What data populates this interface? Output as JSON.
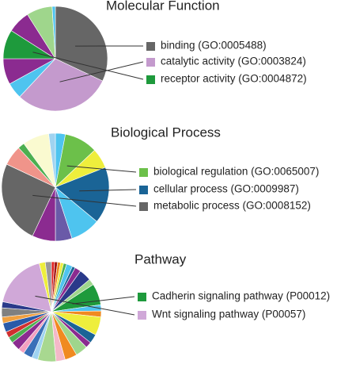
{
  "chart_data": [
    {
      "type": "pie",
      "title": "Molecular Function",
      "categories": [
        "binding (GO:0005488)",
        "catalytic activity (GO:0003824)",
        null,
        null,
        "receptor activity (GO:0004872)",
        null,
        null,
        null
      ],
      "values": [
        32,
        30,
        5,
        8,
        9,
        7,
        8,
        1
      ],
      "colors": [
        "#666666",
        "#c49acd",
        "#4ec4ef",
        "#8b2b90",
        "#1e9a3c",
        "#8b2b90",
        "#9fd68c",
        "#4ec4ef"
      ]
    },
    {
      "type": "pie",
      "title": "Biological Process",
      "categories": [
        null,
        "biological regulation (GO:0065007)",
        null,
        "cellular process (GO:0009987)",
        null,
        null,
        null,
        "metabolic process (GO:0008152)",
        null,
        null,
        null,
        null
      ],
      "values": [
        3,
        10,
        6,
        17,
        9,
        5,
        7,
        25,
        6,
        2,
        8,
        2
      ],
      "colors": [
        "#4ec4ef",
        "#6cc04a",
        "#eeee3c",
        "#1a6496",
        "#4ec4ef",
        "#6a5aa8",
        "#8b2b90",
        "#666666",
        "#f0948a",
        "#4caf50",
        "#fafad0",
        "#9fd3f0"
      ]
    },
    {
      "type": "pie",
      "title": "Pathway",
      "categories": [
        null,
        null,
        null,
        null,
        null,
        null,
        null,
        null,
        null,
        null,
        "Cadherin signaling pathway (P00012)",
        null,
        null,
        null,
        null,
        null,
        null,
        null,
        null,
        null,
        null,
        null,
        null,
        null,
        null,
        null,
        null,
        null,
        null,
        null,
        "Wnt signaling pathway (P00057)",
        null,
        null
      ],
      "values": [
        1,
        1,
        1,
        1,
        1,
        2,
        1,
        2,
        4,
        2,
        7,
        2,
        2,
        6,
        3,
        2,
        4,
        4,
        3,
        6,
        2,
        3,
        2,
        3,
        2,
        2,
        3,
        2,
        3,
        2,
        18,
        2,
        2
      ],
      "colors": [
        "#e02020",
        "#a01818",
        "#f08a20",
        "#eeee3c",
        "#4caf50",
        "#4ec4ef",
        "#1a6496",
        "#8b2b90",
        "#2a3a8a",
        "#9fd68c",
        "#1e9a3c",
        "#4ec4ef",
        "#f08a20",
        "#eeee3c",
        "#1a6496",
        "#8b2b90",
        "#9fd68c",
        "#f08a20",
        "#f4b8c8",
        "#a8d890",
        "#9fd3f0",
        "#3a70b8",
        "#f4a0c0",
        "#8b2b90",
        "#4caf50",
        "#d03030",
        "#2a5aa8",
        "#f0a040",
        "#808080",
        "#2a3a8a",
        "#d0a8d8",
        "#eeee3c",
        "#999999"
      ]
    }
  ]
}
